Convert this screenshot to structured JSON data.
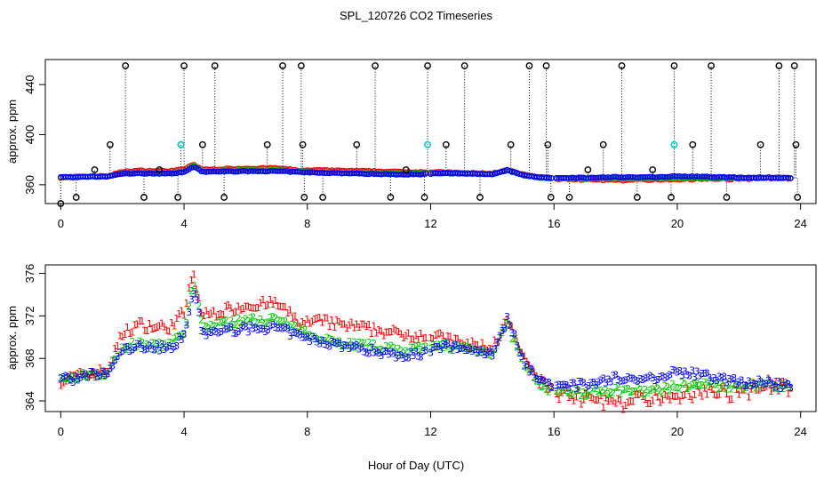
{
  "title": "SPL_120726  CO2 Timeseries",
  "xlabel": "Hour of Day (UTC)",
  "colors": {
    "series1": "#ff0000",
    "series2": "#00cc00",
    "series3": "#0000ff",
    "flag": "#00cccc",
    "axis": "#000000"
  },
  "chart_data": [
    {
      "type": "scatter",
      "ylabel": "approx. ppm",
      "xlim": [
        -0.5,
        24.5
      ],
      "ylim": [
        345,
        460
      ],
      "x_ticks": [
        0,
        4,
        8,
        12,
        16,
        20,
        24
      ],
      "x_tick_labels": [
        "0",
        "4",
        "8",
        "12",
        "16",
        "20",
        "24"
      ],
      "y_ticks": [
        360,
        400,
        440
      ],
      "y_tick_labels": [
        "360",
        "400",
        "440"
      ],
      "marker": "o",
      "outlier_x": [
        0.0,
        0.5,
        1.1,
        1.6,
        2.1,
        2.7,
        3.2,
        3.8,
        3.9,
        4.0,
        4.6,
        5.0,
        5.3,
        6.7,
        7.2,
        7.8,
        7.85,
        7.9,
        8.5,
        9.6,
        10.2,
        10.7,
        11.2,
        11.8,
        11.9,
        12.5,
        13.1,
        13.6,
        14.6,
        15.2,
        15.75,
        15.8,
        15.9,
        16.5,
        17.1,
        17.6,
        18.2,
        18.7,
        19.2,
        19.8,
        19.9,
        20.5,
        21.1,
        21.6,
        22.7,
        23.3,
        23.8,
        23.85,
        23.9
      ],
      "outlier_y": [
        345,
        350,
        372,
        392,
        455,
        350,
        372,
        350,
        392,
        455,
        392,
        455,
        350,
        392,
        455,
        455,
        392,
        350,
        350,
        392,
        455,
        350,
        372,
        350,
        455,
        392,
        455,
        350,
        392,
        455,
        455,
        392,
        350,
        350,
        372,
        392,
        455,
        350,
        372,
        350,
        455,
        392,
        455,
        350,
        392,
        455,
        455,
        392,
        350
      ],
      "flag_x": [
        3.9,
        11.9,
        19.9
      ],
      "flag_y": [
        392,
        392,
        392
      ]
    },
    {
      "type": "scatter",
      "ylabel": "approx. ppm",
      "xlim": [
        -0.5,
        24.5
      ],
      "ylim": [
        363,
        376.8
      ],
      "x_ticks": [
        0,
        4,
        8,
        12,
        16,
        20,
        24
      ],
      "x_tick_labels": [
        "0",
        "4",
        "8",
        "12",
        "16",
        "20",
        "24"
      ],
      "y_ticks": [
        364,
        368,
        372,
        376
      ],
      "y_tick_labels": [
        "364",
        "368",
        "372",
        "376"
      ],
      "series": [
        {
          "marker": "1",
          "color": "#ff0000"
        },
        {
          "marker": "2",
          "color": "#00cc00"
        },
        {
          "marker": "3",
          "color": "#0000ff"
        }
      ],
      "anchor_x": [
        0,
        0.5,
        1,
        1.5,
        2,
        2.5,
        3,
        3.5,
        4,
        4.3,
        4.6,
        5,
        6,
        7,
        7.8,
        8.5,
        9,
        10,
        11,
        11.8,
        12.5,
        13,
        14,
        14.5,
        15,
        15.5,
        16,
        17,
        18,
        19,
        20,
        21,
        22,
        23,
        23.7
      ],
      "anchor_y1": [
        365.9,
        366.3,
        366.6,
        366.8,
        370.3,
        371.2,
        371.0,
        370.9,
        372.3,
        376.0,
        372.0,
        372.3,
        373.0,
        373.2,
        371.3,
        371.5,
        371.2,
        370.8,
        370.3,
        370.2,
        369.9,
        369.4,
        369.0,
        371.6,
        368.0,
        366.0,
        364.8,
        364.3,
        363.9,
        364.0,
        364.7,
        365.0,
        364.8,
        365.5,
        365.4
      ],
      "anchor_y2": [
        365.9,
        366.2,
        366.6,
        366.6,
        369.0,
        369.4,
        369.2,
        369.3,
        370.2,
        375.2,
        371.0,
        371.2,
        371.6,
        371.7,
        370.5,
        370.0,
        369.5,
        369.2,
        368.8,
        368.9,
        369.2,
        369.0,
        368.6,
        371.2,
        367.6,
        365.6,
        365.0,
        364.8,
        365.1,
        364.9,
        365.4,
        365.6,
        365.4,
        365.6,
        365.3
      ],
      "anchor_y3": [
        366.3,
        366.0,
        366.5,
        366.5,
        368.8,
        369.1,
        369.1,
        369.0,
        370.0,
        374.6,
        370.3,
        370.5,
        370.8,
        370.9,
        370.0,
        369.6,
        369.3,
        368.8,
        368.3,
        368.5,
        369.2,
        369.0,
        368.5,
        371.8,
        367.8,
        365.9,
        365.6,
        365.5,
        366.2,
        366.0,
        366.8,
        366.3,
        365.8,
        365.7,
        365.3
      ],
      "gaps": [
        [
          7.95,
          8.0
        ],
        [
          11.9,
          11.95
        ],
        [
          16.0,
          16.05
        ]
      ]
    }
  ]
}
